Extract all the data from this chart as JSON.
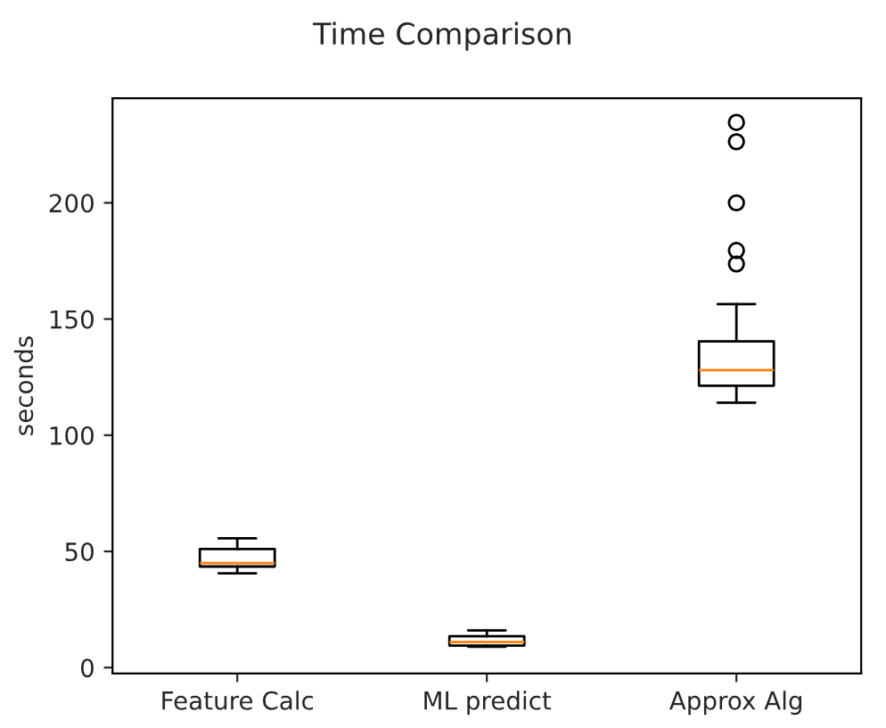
{
  "chart_data": {
    "type": "box",
    "title": "Time Comparison",
    "ylabel": "seconds",
    "categories": [
      "Feature Calc",
      "ML predict",
      "Approx Alg"
    ],
    "boxes": [
      {
        "low": 40.6,
        "q1": 43.5,
        "median": 45,
        "q3": 51,
        "high": 55.6
      },
      {
        "low": 9,
        "q1": 9.5,
        "median": 11,
        "q3": 13.5,
        "high": 16
      },
      {
        "low": 114,
        "q1": 121.3,
        "median": 128,
        "q3": 140.4,
        "high": 156.4,
        "outliers": [
          234.6,
          226.3,
          200,
          179.5,
          173.7
        ]
      }
    ],
    "ylim": [
      -2.5,
      245
    ],
    "yticks": [
      0,
      50,
      100,
      150,
      200
    ],
    "grid": false
  }
}
